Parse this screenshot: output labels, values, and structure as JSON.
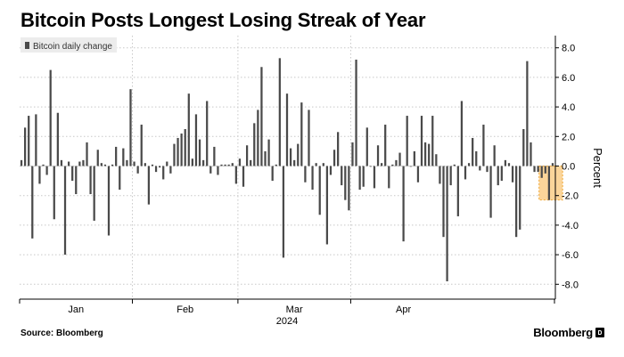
{
  "title": "Bitcoin Posts Longest Losing Streak of Year",
  "source": "Source: Bloomberg",
  "brand": "Bloomberg",
  "colors": {
    "bar": "#4a4a4a",
    "highlight_fill": "#fbd59a",
    "highlight_border": "#f0a93a",
    "grid": "#c8c8c8",
    "legend_bg": "#ececec"
  },
  "chart_data": {
    "type": "bar",
    "legend": [
      "Bitcoin daily change"
    ],
    "xlabel": "2024",
    "ylabel": "Percent",
    "ylim": [
      -9,
      9
    ],
    "yticks": [
      8.0,
      6.0,
      4.0,
      2.0,
      0.0,
      -2.0,
      -4.0,
      -6.0,
      -8.0
    ],
    "ytick_labels": [
      "8.0",
      "6.0",
      "4.0",
      "2.0",
      "0.0",
      "-2.0",
      "-4.0",
      "-6.0",
      "-8.0"
    ],
    "month_labels": [
      {
        "label": "Jan",
        "day_index": 15
      },
      {
        "label": "Feb",
        "day_index": 45
      },
      {
        "label": "Mar",
        "day_index": 75
      },
      {
        "label": "Apr",
        "day_index": 105
      }
    ],
    "month_boundaries": [
      31,
      60,
      91
    ],
    "series": [
      {
        "name": "Bitcoin daily change",
        "values": [
          0.4,
          2.6,
          3.4,
          -4.9,
          3.5,
          -1.2,
          0.1,
          -0.6,
          6.5,
          -3.6,
          3.6,
          0.4,
          -6.0,
          0.3,
          -1.0,
          -1.9,
          0.3,
          0.4,
          1.6,
          -1.9,
          -3.7,
          1.1,
          0.2,
          0.1,
          -4.7,
          0.1,
          1.3,
          -1.6,
          1.2,
          0.4,
          5.2,
          0.3,
          -0.5,
          2.8,
          0.2,
          -2.6,
          0.1,
          -0.4,
          -0.1,
          -0.9,
          0.3,
          -0.5,
          1.5,
          1.9,
          2.2,
          2.5,
          4.9,
          0.5,
          3.5,
          1.8,
          0.4,
          4.4,
          -0.5,
          1.3,
          -0.6,
          0.1,
          0.1,
          0.1,
          0.2,
          -1.2,
          0.5,
          -1.4,
          1.4,
          0.4,
          2.9,
          3.8,
          6.7,
          1.0,
          1.8,
          -1.0,
          0.1,
          7.3,
          -6.2,
          4.9,
          1.2,
          0.4,
          1.5,
          4.3,
          -1.1,
          3.8,
          -1.6,
          0.2,
          -3.3,
          0.2,
          -5.3,
          -0.6,
          1.1,
          2.3,
          -1.3,
          -2.3,
          -3.0,
          1.6,
          7.2,
          -1.6,
          -1.4,
          2.6,
          0.0,
          -1.5,
          1.4,
          0.2,
          2.8,
          -1.5,
          0.1,
          0.4,
          0.9,
          -5.1,
          3.4,
          0.0,
          1.0,
          -1.1,
          3.4,
          1.6,
          1.5,
          3.4,
          0.8,
          -1.2,
          -4.8,
          -7.8,
          -1.3,
          0.1,
          -3.4,
          4.4,
          -0.9,
          0.2,
          1.9,
          1.0,
          -0.3,
          2.8,
          -0.4,
          -3.5,
          1.4,
          -1.3,
          -1.0,
          0.4,
          0.2,
          -1.1,
          -4.8,
          -4.3,
          2.5,
          7.1,
          1.6,
          -0.4,
          -0.4,
          -0.8,
          -0.5,
          -2.3,
          0.2
        ],
        "highlight_range": [
          143,
          148
        ]
      }
    ]
  }
}
